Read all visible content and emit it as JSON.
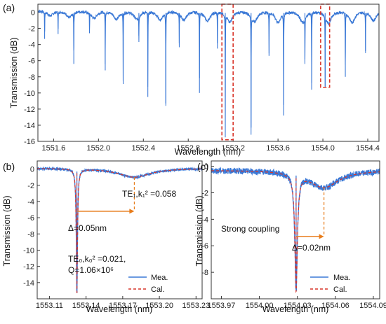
{
  "chart_data": [
    {
      "panel": "(a)",
      "type": "line",
      "xlabel": "Wavelength (nm)",
      "ylabel": "Transmission (dB)",
      "xlim": [
        1551.46,
        1554.5
      ],
      "ylim": [
        -16,
        1
      ],
      "xticks": [
        1551.6,
        1552.0,
        1552.4,
        1552.8,
        1553.2,
        1553.6,
        1554.0,
        1554.4
      ],
      "xtick_labels": [
        "1551.6",
        "1552.0",
        "1552.4",
        "1552.8",
        "1553.2",
        "1553.6",
        "1554.0",
        "1554.4"
      ],
      "yticks": [
        0,
        -2,
        -4,
        -6,
        -8,
        -10,
        -12,
        -14,
        -16
      ],
      "ytick_labels": [
        "0",
        "-2",
        "-4",
        "-6",
        "-8",
        "-10",
        "-12",
        "-14",
        "-16"
      ],
      "line_color": "#3a78d6",
      "baseline_db": 0.2,
      "te0_resonances": [
        {
          "x": 1551.52,
          "y": -3.3
        },
        {
          "x": 1551.64,
          "y": -2.7
        },
        {
          "x": 1551.78,
          "y": -6.4
        },
        {
          "x": 1551.92,
          "y": -2.6
        },
        {
          "x": 1552.06,
          "y": -7.2
        },
        {
          "x": 1552.22,
          "y": -8.5
        },
        {
          "x": 1552.36,
          "y": -2.9
        },
        {
          "x": 1552.44,
          "y": -10.5
        },
        {
          "x": 1552.6,
          "y": -11.3
        },
        {
          "x": 1552.72,
          "y": -3.8
        },
        {
          "x": 1552.9,
          "y": -10.0
        },
        {
          "x": 1553.06,
          "y": -4.5
        },
        {
          "x": 1553.13,
          "y": -15.5
        },
        {
          "x": 1553.36,
          "y": -14.3
        },
        {
          "x": 1553.52,
          "y": -5.4
        },
        {
          "x": 1553.65,
          "y": -12.8
        },
        {
          "x": 1553.84,
          "y": -5.8
        },
        {
          "x": 1553.9,
          "y": -9.6
        },
        {
          "x": 1554.02,
          "y": -9.2
        },
        {
          "x": 1554.2,
          "y": -8.0
        },
        {
          "x": 1554.38,
          "y": -4.8
        }
      ],
      "te1_resonances": [
        {
          "x": 1551.57,
          "y": -0.6
        },
        {
          "x": 1551.74,
          "y": -0.8
        },
        {
          "x": 1551.96,
          "y": -0.9
        },
        {
          "x": 1552.16,
          "y": -1.0
        },
        {
          "x": 1552.34,
          "y": -1.0
        },
        {
          "x": 1552.55,
          "y": -1.1
        },
        {
          "x": 1552.76,
          "y": -1.1
        },
        {
          "x": 1552.97,
          "y": -1.2
        },
        {
          "x": 1553.17,
          "y": -1.3
        },
        {
          "x": 1553.39,
          "y": -1.3
        },
        {
          "x": 1553.6,
          "y": -1.4
        },
        {
          "x": 1553.82,
          "y": -1.4
        },
        {
          "x": 1554.05,
          "y": -1.5
        },
        {
          "x": 1554.26,
          "y": -1.4
        },
        {
          "x": 1554.45,
          "y": -1.2
        }
      ],
      "highlight_boxes": [
        {
          "x0": 1553.1,
          "x1": 1553.2,
          "y0": -15.8,
          "y1": 1.0
        },
        {
          "x0": 1553.98,
          "x1": 1554.06,
          "y0": -9.3,
          "y1": 1.0
        }
      ],
      "highlight_color": "#d9352a"
    },
    {
      "panel": "(b)",
      "type": "line",
      "xlabel": "Wavelength (nm)",
      "ylabel": "Transmission (dB)",
      "xlim": [
        1553.1,
        1553.235
      ],
      "ylim": [
        -16,
        1
      ],
      "xticks": [
        1553.11,
        1553.14,
        1553.17,
        1553.2,
        1553.23
      ],
      "xtick_labels": [
        "1553.11",
        "1553.14",
        "1553.17",
        "1553.20",
        "1553.23"
      ],
      "yticks": [
        0,
        -2,
        -4,
        -6,
        -8,
        -10,
        -12,
        -14
      ],
      "ytick_labels": [
        "0",
        "-2",
        "-4",
        "-6",
        "-8",
        "-10",
        "-12",
        "-14"
      ],
      "series": [
        {
          "name": "Mea.",
          "color": "#3a78d6",
          "style": "solid"
        },
        {
          "name": "Cal.",
          "color": "#d9352a",
          "style": "dashed"
        }
      ],
      "baseline_db": 0.1,
      "resonances": [
        {
          "x0": 1553.1325,
          "depth": 15.4,
          "hwhm": 0.0006
        },
        {
          "x0": 1553.1795,
          "depth": 1.1,
          "hwhm": 0.016
        }
      ],
      "delta_arrow": {
        "x0": 1553.1325,
        "x1": 1553.1795,
        "y": -5.2,
        "guide_top": -1.0
      },
      "arrow_color": "#e87c1a",
      "annotations": {
        "te1": "TE₁,k₁² =0.058",
        "delta": "Δ=0.05nm",
        "te0_line1": "TE₀,k₀² =0.021,",
        "te0_line2": "Q=1.06×10⁶"
      }
    },
    {
      "panel": "(c)",
      "type": "line",
      "xlabel": "Wavelength (nm)",
      "ylabel": "Transmission (dB)",
      "xlim": [
        1553.962,
        1554.095
      ],
      "ylim": [
        -10,
        0.4
      ],
      "xticks": [
        1553.97,
        1554.0,
        1554.03,
        1554.06,
        1554.09
      ],
      "xtick_labels": [
        "1553.97",
        "1554.00",
        "1554.03",
        "1554.06",
        "1554.09"
      ],
      "yticks": [
        0,
        -2,
        -4,
        -6,
        -8
      ],
      "ytick_labels": [
        "0",
        "-2",
        "-4",
        "-6",
        "-8"
      ],
      "series": [
        {
          "name": "Mea.",
          "color": "#3a78d6",
          "style": "solid"
        },
        {
          "name": "Cal.",
          "color": "#d9352a",
          "style": "dashed"
        }
      ],
      "baseline_db": -0.3,
      "resonances": [
        {
          "x0": 1554.029,
          "depth": 8.8,
          "hwhm": 0.0012
        },
        {
          "x0": 1554.051,
          "depth": 1.3,
          "hwhm": 0.014
        }
      ],
      "delta_arrow": {
        "x0": 1554.029,
        "x1": 1554.051,
        "y": -5.3,
        "guide_top": -1.6
      },
      "arrow_color": "#e87c1a",
      "annotations": {
        "strong": "Strong coupling",
        "delta": "Δ=0.02nm"
      }
    }
  ],
  "labels": {
    "a": "(a)",
    "b": "(b)",
    "c": "(c)",
    "legend_mea": "Mea.",
    "legend_cal": "Cal."
  }
}
